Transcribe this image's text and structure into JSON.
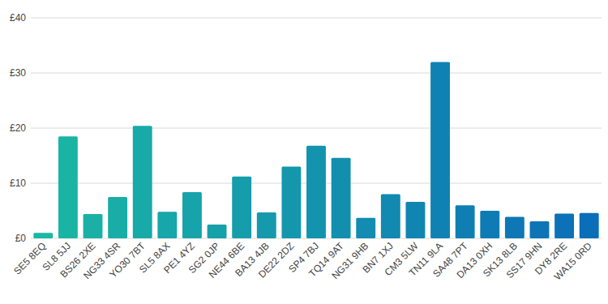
{
  "chart_data": {
    "type": "bar",
    "categories": [
      "SE5 8EQ",
      "SL8 5JJ",
      "BS26 2XE",
      "NG33 4SR",
      "YO30 7BT",
      "SL5 8AX",
      "PE1 4YZ",
      "SG2 0JP",
      "NE44 6BE",
      "BA13 4JB",
      "DE22 2DZ",
      "SP4 7BJ",
      "TQ14 9AT",
      "NG31 9HB",
      "BN7 1XJ",
      "CM3 5LW",
      "TN11 9LA",
      "SA48 7PT",
      "DA13 0XH",
      "SK13 8LB",
      "SS17 9HN",
      "DY8 2RE",
      "WA15 0RD"
    ],
    "values": [
      1.0,
      18.5,
      4.4,
      7.5,
      20.4,
      4.8,
      8.4,
      2.5,
      11.2,
      4.7,
      13.0,
      16.8,
      14.6,
      3.7,
      8.0,
      6.6,
      32.0,
      6.0,
      5.0,
      3.9,
      3.1,
      4.5,
      4.6
    ],
    "colors": [
      "#1bb7a4",
      "#1ab4a5",
      "#1ab0a6",
      "#19ada7",
      "#18aaa8",
      "#17a6a9",
      "#17a3aa",
      "#16a0aa",
      "#159dab",
      "#1599ac",
      "#1496ad",
      "#1393ae",
      "#128faf",
      "#128cb0",
      "#1189b1",
      "#1085b2",
      "#0f82b3",
      "#0f7fb3",
      "#0e7bb4",
      "#0d78b5",
      "#0d75b6",
      "#0c71b7",
      "#0b6eb8"
    ],
    "ylim": [
      0,
      40
    ],
    "yticks": [
      {
        "value": 0,
        "label": "£0"
      },
      {
        "value": 10,
        "label": "£10"
      },
      {
        "value": 20,
        "label": "£20"
      },
      {
        "value": 30,
        "label": "£30"
      },
      {
        "value": 40,
        "label": "£40"
      }
    ],
    "grid": true
  }
}
